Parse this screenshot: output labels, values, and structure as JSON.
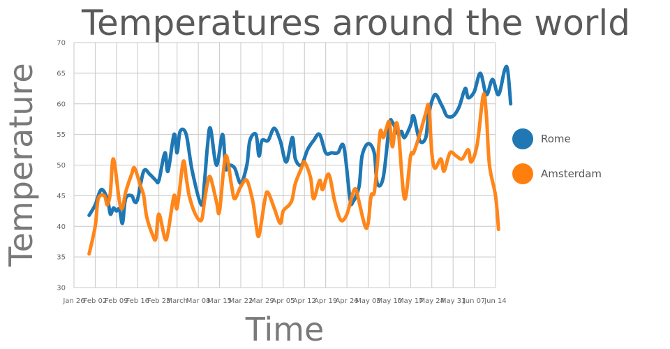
{
  "chart_data": {
    "type": "line",
    "title": "Temperatures around the world",
    "xlabel": "Time",
    "ylabel": "Temperature",
    "ylim": [
      30,
      70
    ],
    "yticks": [
      30,
      35,
      40,
      45,
      50,
      55,
      60,
      65,
      70
    ],
    "xlim": [
      "2015-01-26",
      "2015-06-14"
    ],
    "xticks": [
      {
        "date": "2015-01-26",
        "label": "Jan 26"
      },
      {
        "date": "2015-02-02",
        "label": "Feb 02"
      },
      {
        "date": "2015-02-09",
        "label": "Feb 09"
      },
      {
        "date": "2015-02-16",
        "label": "Feb 16"
      },
      {
        "date": "2015-02-23",
        "label": "Feb 23"
      },
      {
        "date": "2015-03-01",
        "label": "March"
      },
      {
        "date": "2015-03-08",
        "label": "Mar 08"
      },
      {
        "date": "2015-03-15",
        "label": "Mar 15"
      },
      {
        "date": "2015-03-22",
        "label": "Mar 22"
      },
      {
        "date": "2015-03-29",
        "label": "Mar 29"
      },
      {
        "date": "2015-04-05",
        "label": "Apr 05"
      },
      {
        "date": "2015-04-12",
        "label": "Apr 12"
      },
      {
        "date": "2015-04-19",
        "label": "Apr 19"
      },
      {
        "date": "2015-04-26",
        "label": "Apr 26"
      },
      {
        "date": "2015-05-03",
        "label": "May 03"
      },
      {
        "date": "2015-05-10",
        "label": "May 10"
      },
      {
        "date": "2015-05-17",
        "label": "May 17"
      },
      {
        "date": "2015-05-24",
        "label": "May 24"
      },
      {
        "date": "2015-05-31",
        "label": "May 31"
      },
      {
        "date": "2015-06-07",
        "label": "Jun 07"
      },
      {
        "date": "2015-06-14",
        "label": "Jun 14"
      }
    ],
    "grid": true,
    "legend_position": "right",
    "series": [
      {
        "name": "Rome",
        "color": "#1f77b4",
        "points": [
          [
            "2015-01-31",
            41.8
          ],
          [
            "2015-02-02",
            43.5
          ],
          [
            "2015-02-04",
            46.0
          ],
          [
            "2015-02-06",
            44.5
          ],
          [
            "2015-02-07",
            42.0
          ],
          [
            "2015-02-08",
            43.0
          ],
          [
            "2015-02-09",
            42.5
          ],
          [
            "2015-02-10",
            42.8
          ],
          [
            "2015-02-11",
            40.5
          ],
          [
            "2015-02-12",
            44.5
          ],
          [
            "2015-02-14",
            45.0
          ],
          [
            "2015-02-15",
            44.0
          ],
          [
            "2015-02-16",
            44.5
          ],
          [
            "2015-02-18",
            49.0
          ],
          [
            "2015-02-20",
            48.5
          ],
          [
            "2015-02-22",
            47.5
          ],
          [
            "2015-02-23",
            47.5
          ],
          [
            "2015-02-25",
            52.0
          ],
          [
            "2015-02-26",
            49.0
          ],
          [
            "2015-02-28",
            55.0
          ],
          [
            "2015-03-01",
            52.0
          ],
          [
            "2015-03-02",
            55.5
          ],
          [
            "2015-03-04",
            55.0
          ],
          [
            "2015-03-06",
            49.0
          ],
          [
            "2015-03-09",
            43.5
          ],
          [
            "2015-03-10",
            47.0
          ],
          [
            "2015-03-11",
            53.0
          ],
          [
            "2015-03-12",
            56.0
          ],
          [
            "2015-03-14",
            50.0
          ],
          [
            "2015-03-16",
            55.0
          ],
          [
            "2015-03-17",
            49.5
          ],
          [
            "2015-03-18",
            50.0
          ],
          [
            "2015-03-20",
            49.5
          ],
          [
            "2015-03-22",
            47.0
          ],
          [
            "2015-03-24",
            50.0
          ],
          [
            "2015-03-25",
            54.0
          ],
          [
            "2015-03-27",
            55.0
          ],
          [
            "2015-03-28",
            51.5
          ],
          [
            "2015-03-29",
            54.0
          ],
          [
            "2015-03-31",
            54.0
          ],
          [
            "2015-04-02",
            56.0
          ],
          [
            "2015-04-04",
            54.0
          ],
          [
            "2015-04-06",
            50.5
          ],
          [
            "2015-04-08",
            54.5
          ],
          [
            "2015-04-09",
            51.0
          ],
          [
            "2015-04-11",
            50.0
          ],
          [
            "2015-04-13",
            52.5
          ],
          [
            "2015-04-15",
            54.0
          ],
          [
            "2015-04-17",
            55.0
          ],
          [
            "2015-04-19",
            52.0
          ],
          [
            "2015-04-21",
            52.0
          ],
          [
            "2015-04-23",
            52.0
          ],
          [
            "2015-04-25",
            53.0
          ],
          [
            "2015-04-27",
            44.5
          ],
          [
            "2015-04-28",
            44.0
          ],
          [
            "2015-04-30",
            46.5
          ],
          [
            "2015-05-01",
            51.5
          ],
          [
            "2015-05-03",
            53.5
          ],
          [
            "2015-05-05",
            52.0
          ],
          [
            "2015-05-06",
            47.0
          ],
          [
            "2015-05-08",
            48.0
          ],
          [
            "2015-05-10",
            56.5
          ],
          [
            "2015-05-11",
            57.0
          ],
          [
            "2015-05-13",
            55.0
          ],
          [
            "2015-05-14",
            55.5
          ],
          [
            "2015-05-15",
            54.5
          ],
          [
            "2015-05-17",
            56.5
          ],
          [
            "2015-05-18",
            58.0
          ],
          [
            "2015-05-20",
            54.0
          ],
          [
            "2015-05-22",
            54.5
          ],
          [
            "2015-05-23",
            58.5
          ],
          [
            "2015-05-25",
            61.5
          ],
          [
            "2015-05-27",
            60.0
          ],
          [
            "2015-05-28",
            59.0
          ],
          [
            "2015-05-29",
            58.0
          ],
          [
            "2015-05-31",
            58.0
          ],
          [
            "2015-06-02",
            59.5
          ],
          [
            "2015-06-04",
            62.5
          ],
          [
            "2015-06-05",
            61.0
          ],
          [
            "2015-06-07",
            62.0
          ],
          [
            "2015-06-09",
            65.0
          ],
          [
            "2015-06-11",
            61.5
          ],
          [
            "2015-06-13",
            64.0
          ],
          [
            "2015-06-15",
            61.5
          ],
          [
            "2015-06-17",
            65.5
          ],
          [
            "2015-06-18",
            65.5
          ],
          [
            "2015-06-19",
            60.0
          ]
        ]
      },
      {
        "name": "Amsterdam",
        "color": "#ff7f0e",
        "points": [
          [
            "2015-01-31",
            35.5
          ],
          [
            "2015-02-02",
            40.0
          ],
          [
            "2015-02-03",
            44.5
          ],
          [
            "2015-02-05",
            45.0
          ],
          [
            "2015-02-06",
            43.5
          ],
          [
            "2015-02-07",
            45.5
          ],
          [
            "2015-02-08",
            51.0
          ],
          [
            "2015-02-10",
            44.0
          ],
          [
            "2015-02-11",
            43.0
          ],
          [
            "2015-02-12",
            45.5
          ],
          [
            "2015-02-14",
            48.5
          ],
          [
            "2015-02-15",
            49.5
          ],
          [
            "2015-02-17",
            46.5
          ],
          [
            "2015-02-18",
            45.0
          ],
          [
            "2015-02-19",
            41.5
          ],
          [
            "2015-02-21",
            38.5
          ],
          [
            "2015-02-22",
            38.0
          ],
          [
            "2015-02-23",
            42.0
          ],
          [
            "2015-02-25",
            38.0
          ],
          [
            "2015-02-26",
            39.0
          ],
          [
            "2015-02-28",
            45.0
          ],
          [
            "2015-03-01",
            43.0
          ],
          [
            "2015-03-03",
            50.5
          ],
          [
            "2015-03-04",
            48.0
          ],
          [
            "2015-03-05",
            45.0
          ],
          [
            "2015-03-07",
            42.0
          ],
          [
            "2015-03-09",
            41.0
          ],
          [
            "2015-03-10",
            44.0
          ],
          [
            "2015-03-11",
            47.0
          ],
          [
            "2015-03-12",
            48.0
          ],
          [
            "2015-03-14",
            44.0
          ],
          [
            "2015-03-15",
            42.5
          ],
          [
            "2015-03-17",
            51.5
          ],
          [
            "2015-03-19",
            46.5
          ],
          [
            "2015-03-20",
            44.5
          ],
          [
            "2015-03-22",
            46.5
          ],
          [
            "2015-03-24",
            47.5
          ],
          [
            "2015-03-26",
            44.0
          ],
          [
            "2015-03-27",
            40.5
          ],
          [
            "2015-03-28",
            38.5
          ],
          [
            "2015-03-30",
            44.5
          ],
          [
            "2015-03-31",
            45.5
          ],
          [
            "2015-04-02",
            43.0
          ],
          [
            "2015-04-04",
            40.5
          ],
          [
            "2015-04-05",
            42.5
          ],
          [
            "2015-04-07",
            43.5
          ],
          [
            "2015-04-08",
            44.5
          ],
          [
            "2015-04-09",
            47.0
          ],
          [
            "2015-04-11",
            49.5
          ],
          [
            "2015-04-12",
            50.5
          ],
          [
            "2015-04-14",
            48.0
          ],
          [
            "2015-04-15",
            44.5
          ],
          [
            "2015-04-17",
            47.5
          ],
          [
            "2015-04-18",
            46.0
          ],
          [
            "2015-04-20",
            48.5
          ],
          [
            "2015-04-22",
            44.0
          ],
          [
            "2015-04-24",
            41.0
          ],
          [
            "2015-04-26",
            42.0
          ],
          [
            "2015-04-28",
            45.5
          ],
          [
            "2015-04-29",
            46.0
          ],
          [
            "2015-04-30",
            44.0
          ],
          [
            "2015-05-02",
            40.0
          ],
          [
            "2015-05-03",
            40.5
          ],
          [
            "2015-05-04",
            45.0
          ],
          [
            "2015-05-05",
            45.5
          ],
          [
            "2015-05-06",
            50.0
          ],
          [
            "2015-05-07",
            55.5
          ],
          [
            "2015-05-08",
            54.5
          ],
          [
            "2015-05-09",
            56.0
          ],
          [
            "2015-05-10",
            57.0
          ],
          [
            "2015-05-11",
            53.0
          ],
          [
            "2015-05-12",
            56.5
          ],
          [
            "2015-05-13",
            55.5
          ],
          [
            "2015-05-15",
            44.5
          ],
          [
            "2015-05-17",
            51.5
          ],
          [
            "2015-05-18",
            52.0
          ],
          [
            "2015-05-20",
            55.0
          ],
          [
            "2015-05-22",
            58.5
          ],
          [
            "2015-05-23",
            59.5
          ],
          [
            "2015-05-24",
            52.0
          ],
          [
            "2015-05-25",
            49.5
          ],
          [
            "2015-05-27",
            51.0
          ],
          [
            "2015-05-28",
            49.0
          ],
          [
            "2015-05-30",
            52.0
          ],
          [
            "2015-06-01",
            51.5
          ],
          [
            "2015-06-03",
            51.0
          ],
          [
            "2015-06-05",
            52.5
          ],
          [
            "2015-06-06",
            50.5
          ],
          [
            "2015-06-08",
            53.5
          ],
          [
            "2015-06-10",
            61.5
          ],
          [
            "2015-06-11",
            58.0
          ],
          [
            "2015-06-12",
            50.0
          ],
          [
            "2015-06-14",
            45.0
          ],
          [
            "2015-06-15",
            39.5
          ]
        ]
      }
    ]
  }
}
